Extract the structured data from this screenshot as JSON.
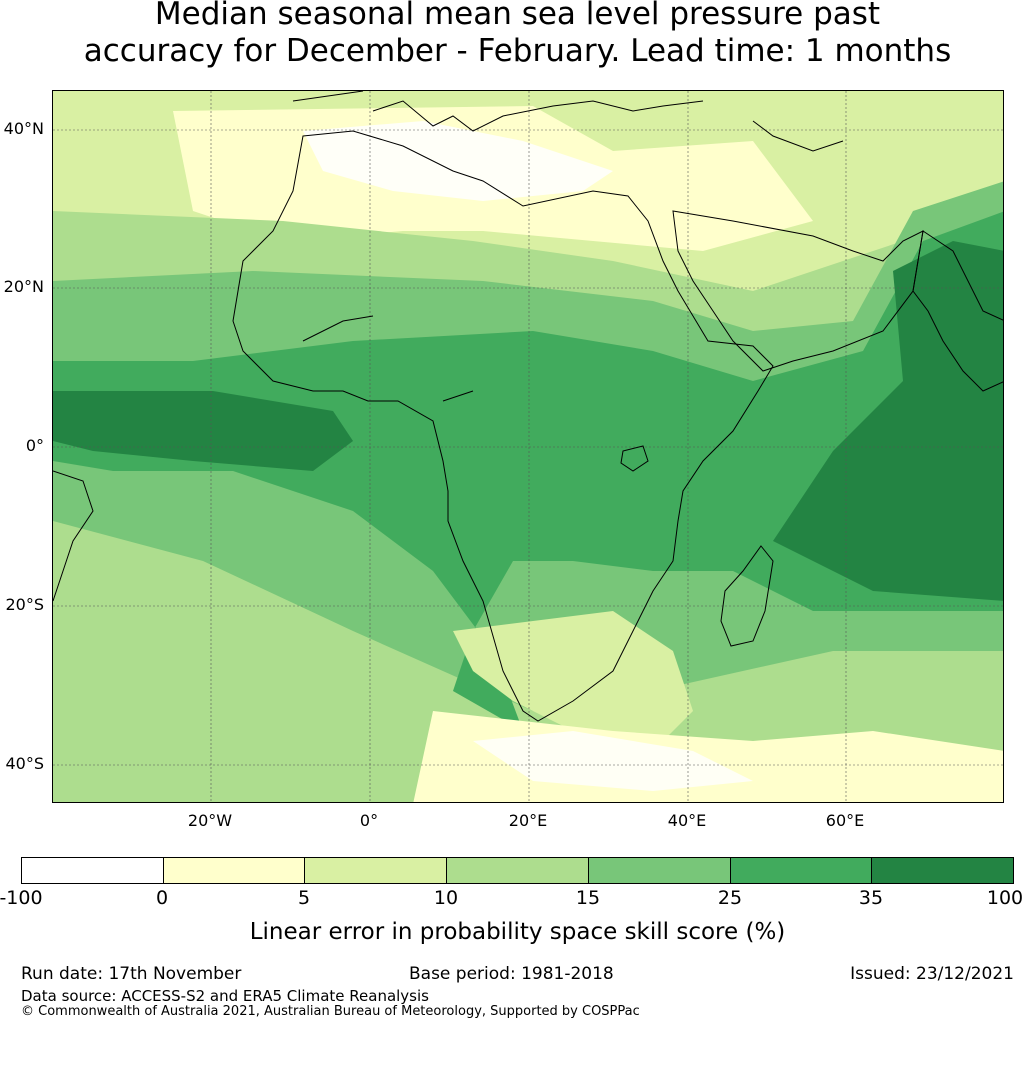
{
  "title_line1": "Median seasonal mean sea level pressure past",
  "title_line2": "accuracy for December - February. Lead time: 1 months",
  "map": {
    "lat_labels": [
      "40°N",
      "20°N",
      "0°",
      "20°S",
      "40°S"
    ],
    "lon_labels": [
      "20°W",
      "0°",
      "20°E",
      "40°E",
      "60°E"
    ],
    "extent": {
      "lon_min": -40,
      "lon_max": 80,
      "lat_min": -45,
      "lat_max": 45
    }
  },
  "colorbar": {
    "ticks": [
      "-100",
      "0",
      "5",
      "10",
      "15",
      "25",
      "35",
      "100"
    ],
    "colors": [
      "#ffffff",
      "#ffffcc",
      "#d9f0a3",
      "#addd8e",
      "#78c679",
      "#41ab5d",
      "#238443"
    ],
    "label": "Linear error in probability space skill score (%)"
  },
  "footer": {
    "run_date": "Run date: 17th November",
    "base_period": "Base period: 1981-2018",
    "issued": "Issued: 23/12/2021",
    "data_source": "Data source: ACCESS-S2 and ERA5 Climate Reanalysis",
    "copyright": "© Commonwealth of Australia 2021, Australian Bureau of Meteorology, Supported by COSPPac"
  }
}
